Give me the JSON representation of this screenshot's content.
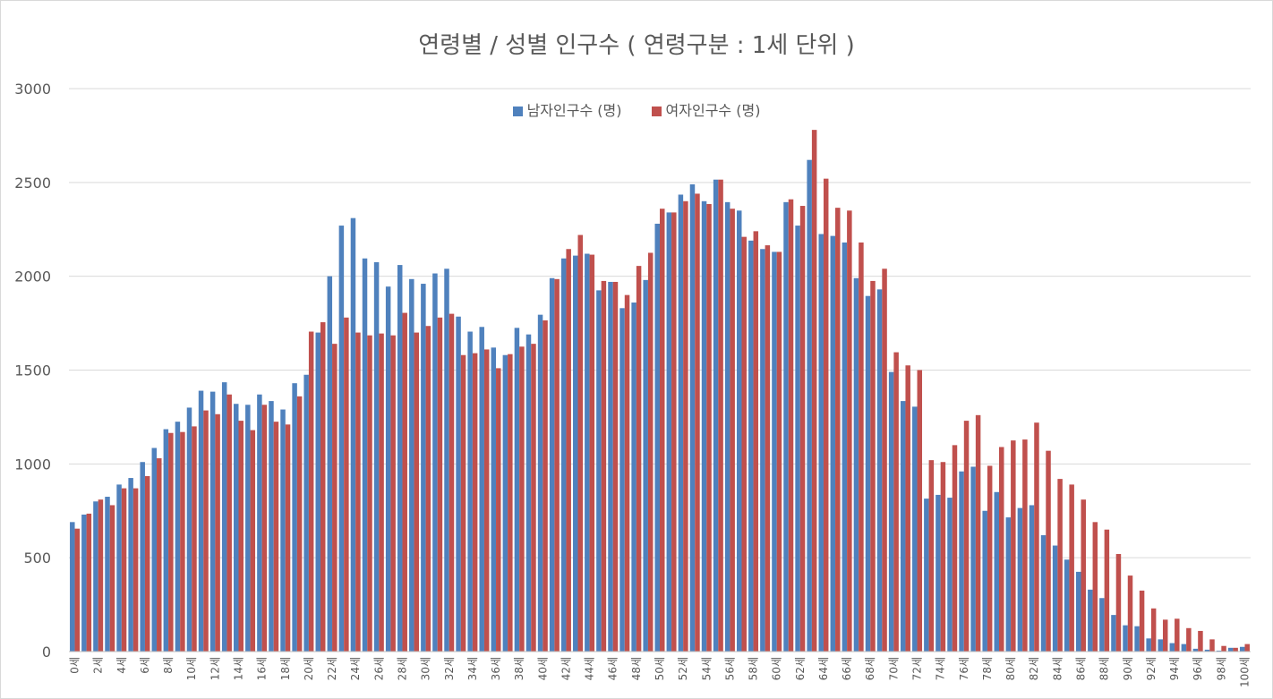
{
  "chart_data": {
    "type": "bar",
    "title": "연령별  / 성별 인구수 ( 연령구분 : 1세 단위 )",
    "ylim": [
      0,
      3000
    ],
    "yticks": [
      0,
      500,
      1000,
      1500,
      2000,
      2500,
      3000
    ],
    "grid": true,
    "legend_position": "top-center",
    "tick_labels": [
      "0세",
      "2세",
      "4세",
      "6세",
      "8세",
      "10세",
      "12세",
      "14세",
      "16세",
      "18세",
      "20세",
      "22세",
      "24세",
      "26세",
      "28세",
      "30세",
      "32세",
      "34세",
      "36세",
      "38세",
      "40세",
      "42세",
      "44세",
      "46세",
      "48세",
      "50세",
      "52세",
      "54세",
      "56세",
      "58세",
      "60세",
      "62세",
      "64세",
      "66세",
      "68세",
      "70세",
      "72세",
      "74세",
      "76세",
      "78세",
      "80세",
      "82세",
      "84세",
      "86세",
      "88세",
      "90세",
      "92세",
      "94세",
      "96세",
      "98세",
      "100세"
    ],
    "categories": [
      "0세",
      "1세",
      "2세",
      "3세",
      "4세",
      "5세",
      "6세",
      "7세",
      "8세",
      "9세",
      "10세",
      "11세",
      "12세",
      "13세",
      "14세",
      "15세",
      "16세",
      "17세",
      "18세",
      "19세",
      "20세",
      "21세",
      "22세",
      "23세",
      "24세",
      "25세",
      "26세",
      "27세",
      "28세",
      "29세",
      "30세",
      "31세",
      "32세",
      "33세",
      "34세",
      "35세",
      "36세",
      "37세",
      "38세",
      "39세",
      "40세",
      "41세",
      "42세",
      "43세",
      "44세",
      "45세",
      "46세",
      "47세",
      "48세",
      "49세",
      "50세",
      "51세",
      "52세",
      "53세",
      "54세",
      "55세",
      "56세",
      "57세",
      "58세",
      "59세",
      "60세",
      "61세",
      "62세",
      "63세",
      "64세",
      "65세",
      "66세",
      "67세",
      "68세",
      "69세",
      "70세",
      "71세",
      "72세",
      "73세",
      "74세",
      "75세",
      "76세",
      "77세",
      "78세",
      "79세",
      "80세",
      "81세",
      "82세",
      "83세",
      "84세",
      "85세",
      "86세",
      "87세",
      "88세",
      "89세",
      "90세",
      "91세",
      "92세",
      "93세",
      "94세",
      "95세",
      "96세",
      "97세",
      "98세",
      "99세",
      "100세"
    ],
    "series": [
      {
        "name": "남자인구수 (명)",
        "color": "#4f81bd",
        "values": [
          690,
          730,
          800,
          825,
          890,
          925,
          1010,
          1085,
          1185,
          1225,
          1300,
          1390,
          1385,
          1435,
          1320,
          1315,
          1370,
          1335,
          1290,
          1430,
          1475,
          1700,
          2000,
          2270,
          2310,
          2095,
          2075,
          1945,
          2060,
          1985,
          1960,
          2015,
          2040,
          1785,
          1705,
          1730,
          1620,
          1580,
          1725,
          1690,
          1795,
          1990,
          2095,
          2110,
          2120,
          1925,
          1970,
          1830,
          1860,
          1980,
          2280,
          2340,
          2435,
          2490,
          2400,
          2515,
          2395,
          2350,
          2190,
          2145,
          2130,
          2395,
          2270,
          2620,
          2225,
          2215,
          2180,
          1990,
          1895,
          1930,
          1490,
          1335,
          1305,
          815,
          835,
          820,
          960,
          985,
          750,
          850,
          715,
          765,
          780,
          620,
          565,
          490,
          425,
          330,
          285,
          195,
          140,
          135,
          70,
          65,
          45,
          40,
          15,
          10,
          5,
          20,
          25
        ]
      },
      {
        "name": "여자인구수 (명)",
        "color": "#c0504d",
        "values": [
          655,
          735,
          810,
          780,
          870,
          870,
          935,
          1030,
          1165,
          1170,
          1200,
          1285,
          1265,
          1370,
          1230,
          1180,
          1315,
          1225,
          1210,
          1360,
          1705,
          1755,
          1640,
          1780,
          1700,
          1685,
          1695,
          1685,
          1805,
          1700,
          1735,
          1780,
          1800,
          1580,
          1590,
          1610,
          1510,
          1585,
          1625,
          1640,
          1765,
          1985,
          2145,
          2220,
          2115,
          1975,
          1970,
          1900,
          2055,
          2125,
          2360,
          2340,
          2400,
          2440,
          2385,
          2515,
          2360,
          2210,
          2240,
          2165,
          2130,
          2410,
          2375,
          2780,
          2520,
          2365,
          2350,
          2180,
          1975,
          2040,
          1595,
          1525,
          1500,
          1020,
          1010,
          1100,
          1230,
          1260,
          990,
          1090,
          1125,
          1130,
          1220,
          1070,
          920,
          890,
          810,
          690,
          650,
          520,
          405,
          325,
          230,
          170,
          175,
          125,
          110,
          65,
          30,
          20,
          40
        ]
      }
    ]
  }
}
